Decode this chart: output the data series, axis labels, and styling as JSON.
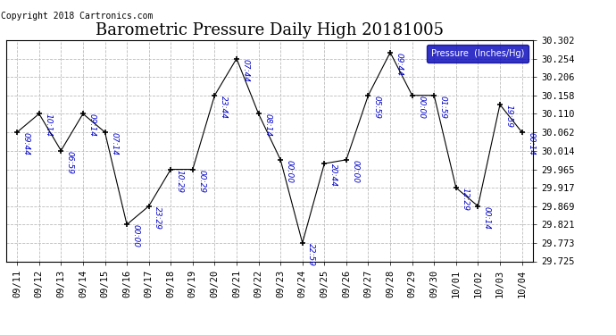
{
  "title": "Barometric Pressure Daily High 20181005",
  "copyright": "Copyright 2018 Cartronics.com",
  "legend_label": "Pressure  (Inches/Hg)",
  "ylim": [
    29.725,
    30.302
  ],
  "yticks": [
    29.725,
    29.773,
    29.821,
    29.869,
    29.917,
    29.965,
    30.014,
    30.062,
    30.11,
    30.158,
    30.206,
    30.254,
    30.302
  ],
  "background_color": "#ffffff",
  "plot_bg_color": "#ffffff",
  "line_color": "#0000cc",
  "marker_color": "#000000",
  "grid_color": "#bbbbbb",
  "dates": [
    "09/11",
    "09/12",
    "09/13",
    "09/14",
    "09/15",
    "09/16",
    "09/17",
    "09/18",
    "09/19",
    "09/20",
    "09/21",
    "09/22",
    "09/23",
    "09/24",
    "09/25",
    "09/26",
    "09/27",
    "09/28",
    "09/29",
    "09/30",
    "10/01",
    "10/02",
    "10/03",
    "10/04"
  ],
  "values": [
    30.062,
    30.11,
    30.014,
    30.11,
    30.062,
    29.821,
    29.869,
    29.965,
    29.965,
    30.158,
    30.254,
    30.11,
    29.99,
    29.773,
    29.98,
    29.99,
    30.158,
    30.27,
    30.158,
    30.158,
    29.917,
    29.869,
    30.134,
    30.062
  ],
  "time_labels": [
    "09:44",
    "10:14",
    "06:59",
    "09:14",
    "07:14",
    "00:00",
    "23:29",
    "10:29",
    "00:29",
    "23:44",
    "07:44",
    "08:14",
    "00:00",
    "22:59",
    "20:44",
    "00:00",
    "05:59",
    "09:44",
    "00:00",
    "01:59",
    "12:29",
    "00:14",
    "19:59",
    "00:14"
  ],
  "title_fontsize": 13,
  "tick_fontsize": 7.5,
  "annot_fontsize": 6.5
}
